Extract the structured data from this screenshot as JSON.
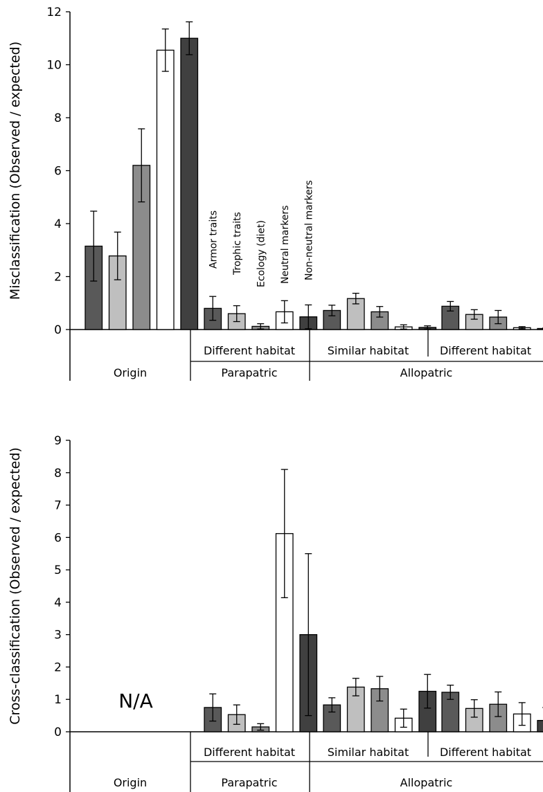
{
  "colors": {
    "series": [
      "#595959",
      "#bfbfbf",
      "#8c8c8c",
      "#ffffff",
      "#404040"
    ],
    "stroke": "#000000"
  },
  "chart_data": [
    {
      "type": "bar",
      "ylabel": "Misclassification (Observed / expected)",
      "ylim": [
        0,
        12
      ],
      "yticks": [
        0,
        2,
        4,
        6,
        8,
        10,
        12
      ],
      "ytick_labels": [
        "0",
        "2",
        "4",
        "6",
        "8",
        "10",
        "12"
      ],
      "categories": [
        "Origin",
        "Different habitat",
        "Similar habitat",
        "Different habitat"
      ],
      "category_labels": [
        "",
        "Different habitat",
        "Similar habitat",
        "Different habitat"
      ],
      "groups": [
        {
          "label": "Origin",
          "categories": [
            0
          ]
        },
        {
          "label": "Parapatric",
          "categories": [
            1
          ]
        },
        {
          "label": "Allopatric",
          "categories": [
            2,
            3
          ]
        }
      ],
      "legend": {
        "placement": "rotated labels above parapatric bars",
        "entries": [
          "Armor traits",
          "Trophic traits",
          "Ecology (diet)",
          "Neutral markers",
          "Non-neutral markers"
        ]
      },
      "series": [
        {
          "name": "Armor traits",
          "values": [
            3.15,
            0.8,
            0.72,
            0.88
          ],
          "errors": [
            1.32,
            0.45,
            0.2,
            0.18
          ]
        },
        {
          "name": "Trophic traits",
          "values": [
            2.78,
            0.6,
            1.17,
            0.57
          ],
          "errors": [
            0.9,
            0.3,
            0.2,
            0.18
          ]
        },
        {
          "name": "Ecology (diet)",
          "values": [
            6.2,
            0.12,
            0.67,
            0.47
          ],
          "errors": [
            1.38,
            0.1,
            0.2,
            0.25
          ]
        },
        {
          "name": "Neutral markers",
          "values": [
            10.55,
            0.67,
            0.1,
            0.07
          ],
          "errors": [
            0.8,
            0.42,
            0.08,
            0.04
          ]
        },
        {
          "name": "Non-neutral markers",
          "values": [
            11.0,
            0.48,
            0.08,
            0.04
          ],
          "errors": [
            0.62,
            0.45,
            0.06,
            0.02
          ]
        }
      ]
    },
    {
      "type": "bar",
      "ylabel": "Cross-classification (Observed / expected)",
      "ylim": [
        0,
        9
      ],
      "yticks": [
        0,
        1,
        2,
        3,
        4,
        5,
        6,
        7,
        8,
        9
      ],
      "ytick_labels": [
        "0",
        "1",
        "2",
        "3",
        "4",
        "5",
        "6",
        "7",
        "8",
        "9"
      ],
      "categories": [
        "Origin",
        "Different habitat",
        "Similar habitat",
        "Different habitat"
      ],
      "category_labels": [
        "",
        "Different habitat",
        "Similar habitat",
        "Different habitat"
      ],
      "groups": [
        {
          "label": "Origin",
          "categories": [
            0
          ]
        },
        {
          "label": "Parapatric",
          "categories": [
            1
          ]
        },
        {
          "label": "Allopatric",
          "categories": [
            2,
            3
          ]
        }
      ],
      "annotation": "N/A",
      "series": [
        {
          "name": "Armor traits",
          "values": [
            null,
            0.75,
            0.83,
            1.22
          ],
          "errors": [
            null,
            0.42,
            0.22,
            0.22
          ]
        },
        {
          "name": "Trophic traits",
          "values": [
            null,
            0.53,
            1.38,
            0.72
          ],
          "errors": [
            null,
            0.3,
            0.27,
            0.27
          ]
        },
        {
          "name": "Ecology (diet)",
          "values": [
            null,
            0.15,
            1.33,
            0.85
          ],
          "errors": [
            null,
            0.1,
            0.38,
            0.38
          ]
        },
        {
          "name": "Neutral markers",
          "values": [
            null,
            6.12,
            0.42,
            0.55
          ],
          "errors": [
            null,
            1.98,
            0.28,
            0.35
          ]
        },
        {
          "name": "Non-neutral markers",
          "values": [
            null,
            3.0,
            1.25,
            0.35
          ],
          "errors": [
            null,
            2.5,
            0.52,
            0.4
          ]
        }
      ]
    }
  ]
}
